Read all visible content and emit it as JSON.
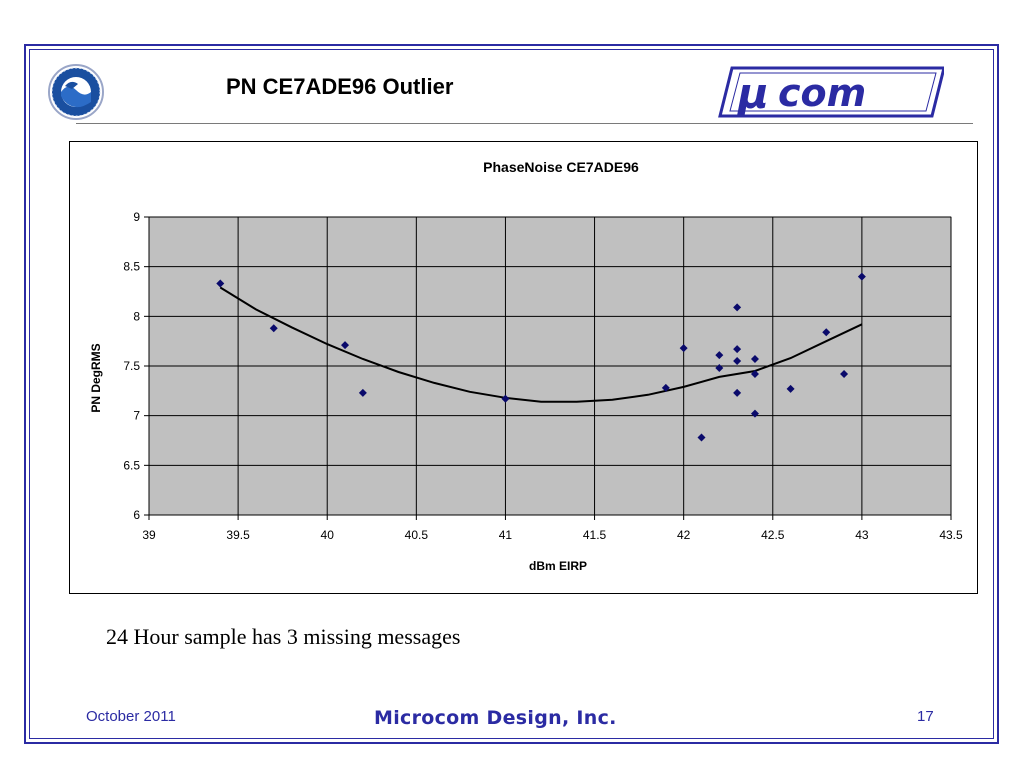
{
  "slide": {
    "title": "PN CE7ADE96 Outlier",
    "caption": "24 Hour sample has 3 missing messages",
    "footer_date": "October 2011",
    "footer_company": "Microcom Design, Inc.",
    "footer_page": "17",
    "accent_color": "#2b2ba3"
  },
  "logos": {
    "left_icon": "noaa-logo",
    "right_icon": "ucom-logo",
    "right_text": "com"
  },
  "chart_data": {
    "type": "scatter",
    "title": "PhaseNoise CE7ADE96",
    "xlabel": "dBm EIRP",
    "ylabel": "PN DegRMS",
    "xlim": [
      39,
      43.5
    ],
    "ylim": [
      6,
      9
    ],
    "xticks": [
      "39",
      "39.5",
      "40",
      "40.5",
      "41",
      "41.5",
      "42",
      "42.5",
      "43",
      "43.5"
    ],
    "yticks": [
      "6",
      "6.5",
      "7",
      "7.5",
      "8",
      "8.5",
      "9"
    ],
    "grid": true,
    "plot_background": "#c0c0c0",
    "marker_color": "#0a0a6b",
    "points": [
      [
        39.4,
        8.33
      ],
      [
        39.7,
        7.88
      ],
      [
        40.1,
        7.71
      ],
      [
        40.2,
        7.23
      ],
      [
        41.0,
        7.17
      ],
      [
        41.9,
        7.28
      ],
      [
        42.0,
        7.68
      ],
      [
        42.1,
        6.78
      ],
      [
        42.2,
        7.61
      ],
      [
        42.2,
        7.48
      ],
      [
        42.3,
        8.09
      ],
      [
        42.3,
        7.67
      ],
      [
        42.3,
        7.55
      ],
      [
        42.3,
        7.23
      ],
      [
        42.4,
        7.57
      ],
      [
        42.4,
        7.42
      ],
      [
        42.4,
        7.02
      ],
      [
        42.6,
        7.27
      ],
      [
        42.8,
        7.84
      ],
      [
        42.9,
        7.42
      ],
      [
        43.0,
        8.4
      ]
    ],
    "trendline": {
      "type": "polynomial",
      "x_range": [
        39.4,
        43.0
      ],
      "points": [
        [
          39.4,
          8.29
        ],
        [
          39.6,
          8.07
        ],
        [
          39.8,
          7.89
        ],
        [
          40.0,
          7.72
        ],
        [
          40.2,
          7.57
        ],
        [
          40.4,
          7.44
        ],
        [
          40.6,
          7.33
        ],
        [
          40.8,
          7.24
        ],
        [
          41.0,
          7.18
        ],
        [
          41.2,
          7.14
        ],
        [
          41.4,
          7.14
        ],
        [
          41.6,
          7.16
        ],
        [
          41.8,
          7.21
        ],
        [
          42.0,
          7.29
        ],
        [
          42.2,
          7.39
        ],
        [
          42.4,
          7.45
        ],
        [
          42.6,
          7.58
        ],
        [
          42.8,
          7.75
        ],
        [
          43.0,
          7.92
        ]
      ]
    }
  }
}
